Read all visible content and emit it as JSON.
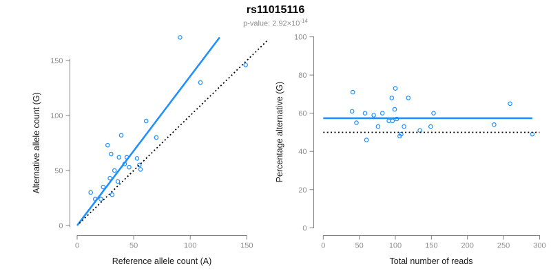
{
  "title": "rs11015116",
  "subtitle": {
    "text": "p-value: 2.92×10",
    "exponent": "-14"
  },
  "colors": {
    "accent_blue": "#1E90FF",
    "axis_gray": "#808080",
    "tick_label_gray": "#8c8c8c",
    "label_color": "#1a1a1a",
    "subtitle_gray": "#8c8c8c",
    "reference_black": "#000000"
  },
  "chart_data": [
    {
      "type": "scatter",
      "panel": "left",
      "xlabel": "Reference allele count (A)",
      "ylabel": "Alternative allele count (G)",
      "xlim": [
        0,
        168
      ],
      "ylim": [
        0,
        172
      ],
      "xticks": [
        0,
        50,
        100,
        150
      ],
      "yticks": [
        0,
        50,
        100,
        150
      ],
      "grid": false,
      "points": [
        [
          91,
          171
        ],
        [
          149,
          146
        ],
        [
          109,
          130
        ],
        [
          61,
          95
        ],
        [
          70,
          80
        ],
        [
          39,
          82
        ],
        [
          27,
          73
        ],
        [
          30,
          65
        ],
        [
          37,
          62
        ],
        [
          44,
          62
        ],
        [
          53,
          61
        ],
        [
          42,
          56
        ],
        [
          46,
          53
        ],
        [
          55,
          55
        ],
        [
          56,
          51
        ],
        [
          33,
          50
        ],
        [
          29,
          43
        ],
        [
          36,
          40
        ],
        [
          23,
          35
        ],
        [
          12,
          30
        ],
        [
          31,
          28
        ],
        [
          16,
          24
        ],
        [
          21,
          24
        ]
      ],
      "trend_line": {
        "style": "solid",
        "color_key": "accent_blue",
        "from": [
          0,
          0
        ],
        "to": [
          126,
          171
        ]
      },
      "identity_line": {
        "style": "dotted",
        "color_key": "reference_black",
        "from": [
          2,
          2
        ],
        "to": [
          168,
          168
        ]
      }
    },
    {
      "type": "scatter",
      "panel": "right",
      "xlabel": "Total number of reads",
      "ylabel": "Percentage alternative (G)",
      "xlim": [
        0,
        300
      ],
      "ylim": [
        0,
        100
      ],
      "xticks": [
        0,
        50,
        100,
        150,
        200,
        250,
        300
      ],
      "yticks": [
        0,
        20,
        40,
        60,
        80,
        100
      ],
      "grid": false,
      "points": [
        [
          41,
          71
        ],
        [
          100,
          73
        ],
        [
          95,
          68
        ],
        [
          118,
          68
        ],
        [
          259,
          65
        ],
        [
          40,
          61
        ],
        [
          99,
          62
        ],
        [
          58,
          60
        ],
        [
          70,
          59
        ],
        [
          82,
          60
        ],
        [
          153,
          60
        ],
        [
          46,
          55
        ],
        [
          91,
          56
        ],
        [
          96,
          56
        ],
        [
          102,
          57
        ],
        [
          76,
          53
        ],
        [
          112,
          53
        ],
        [
          149,
          53
        ],
        [
          134,
          51
        ],
        [
          108,
          49
        ],
        [
          106,
          48
        ],
        [
          60,
          46
        ],
        [
          237,
          54
        ],
        [
          290,
          49
        ]
      ],
      "mean_line": {
        "style": "solid",
        "color_key": "accent_blue",
        "value": 57.4,
        "x_range": [
          0,
          290
        ]
      },
      "reference_line": {
        "style": "dotted",
        "color_key": "reference_black",
        "value": 50,
        "x_range": [
          0,
          300
        ]
      }
    }
  ]
}
